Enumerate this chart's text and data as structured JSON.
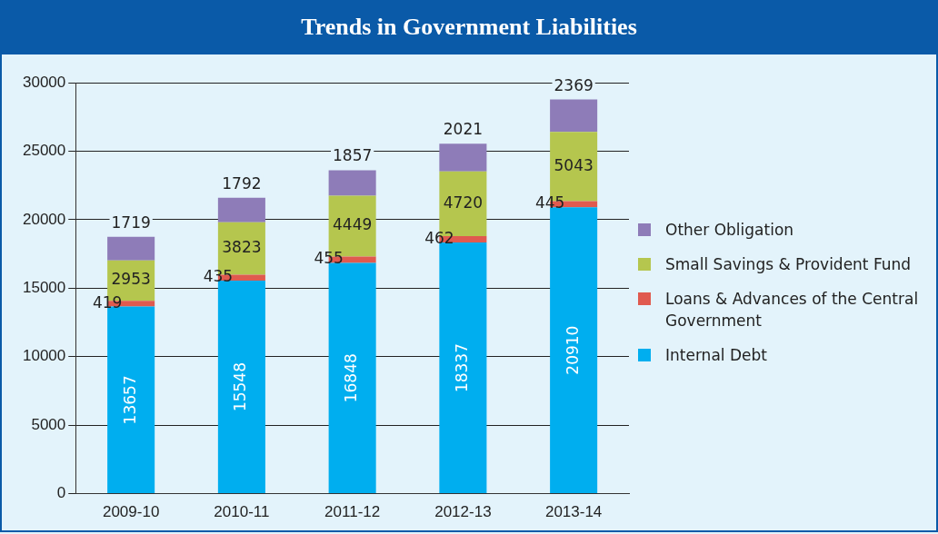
{
  "chart_data": {
    "type": "bar",
    "title": "Trends in Government Liabilities",
    "categories": [
      "2009-10",
      "2010-11",
      "2011-12",
      "2012-13",
      "2013-14"
    ],
    "stacked": true,
    "series": [
      {
        "name": "Internal Debt",
        "color": "#00aeef",
        "values": [
          13657,
          15548,
          16848,
          18337,
          20910
        ]
      },
      {
        "name": "Loans & Advances of the Central Government",
        "color": "#e05a4f",
        "values": [
          419,
          435,
          455,
          462,
          445
        ]
      },
      {
        "name": "Small Savings & Provident Fund",
        "color": "#b5c64e",
        "values": [
          2953,
          3823,
          4449,
          4720,
          5043
        ]
      },
      {
        "name": "Other Obligation",
        "color": "#8e7cb8",
        "values": [
          1719,
          1792,
          1857,
          2021,
          2369
        ]
      }
    ],
    "ylim": [
      0,
      30000
    ],
    "yticks": [
      0,
      5000,
      10000,
      15000,
      20000,
      25000,
      30000
    ],
    "grid": "y",
    "legend": "right",
    "data_labels": true
  }
}
